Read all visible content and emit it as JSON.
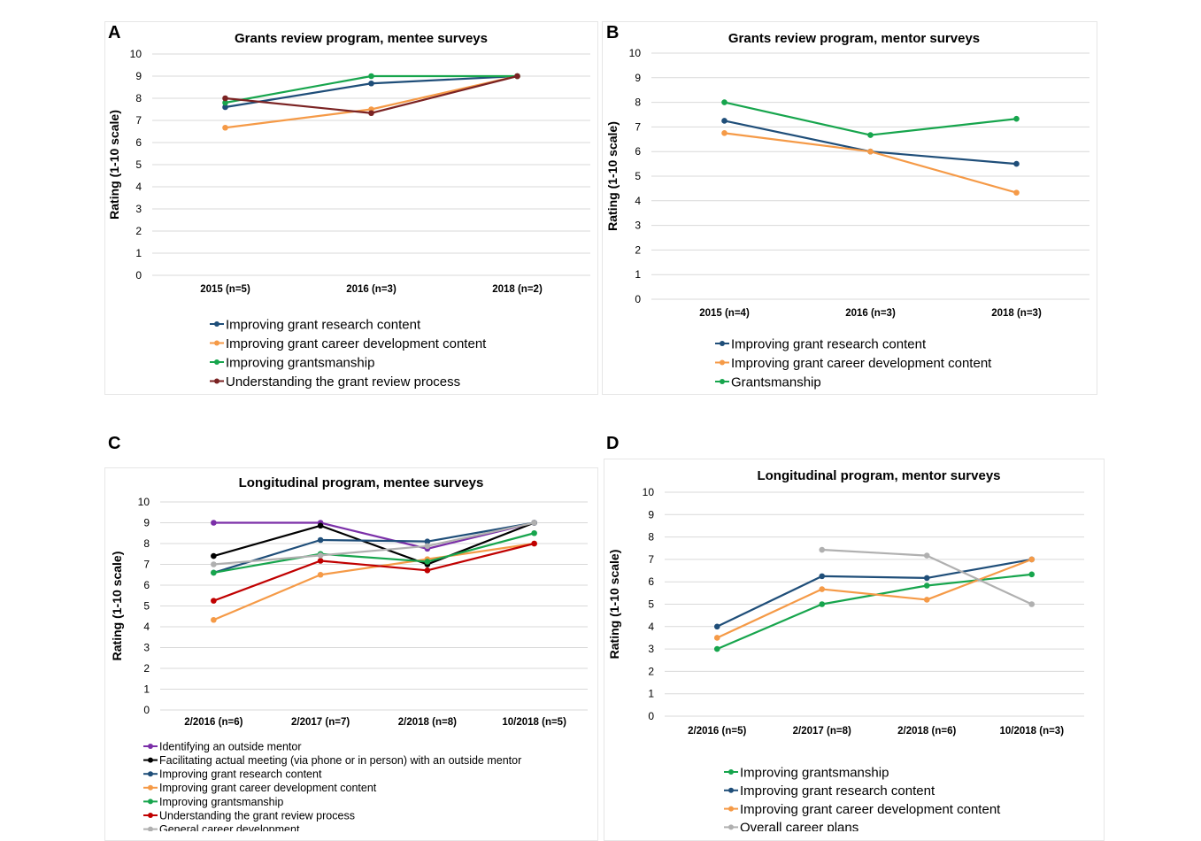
{
  "panels": [
    "A",
    "B",
    "C",
    "D"
  ],
  "chart_data": [
    {
      "type": "line",
      "title": "Grants review program, mentee surveys",
      "ylabel": "Rating (1-10 scale)",
      "ylim": [
        0,
        10
      ],
      "yticks": [
        "0",
        "1",
        "2",
        "3",
        "4",
        "5",
        "6",
        "7",
        "8",
        "9",
        "10"
      ],
      "categories": [
        "2015 (n=5)",
        "2016 (n=3)",
        "2018 (n=2)"
      ],
      "legend_position": "bottom",
      "grid": true,
      "series": [
        {
          "name": "Improving grant research content",
          "color": "#1f4e79",
          "values": [
            7.6,
            8.67,
            9
          ]
        },
        {
          "name": "Improving grant career development content",
          "color": "#f59a47",
          "values": [
            6.67,
            7.5,
            9
          ]
        },
        {
          "name": "Improving grantsmanship",
          "color": "#17a54d",
          "values": [
            7.8,
            9,
            9
          ]
        },
        {
          "name": "Understanding the grant review process",
          "color": "#7b2323",
          "values": [
            8,
            7.33,
            9
          ]
        }
      ]
    },
    {
      "type": "line",
      "title": "Grants review program, mentor surveys",
      "ylabel": "Rating (1-10 scale)",
      "ylim": [
        0,
        10
      ],
      "yticks": [
        "0",
        "1",
        "2",
        "3",
        "4",
        "5",
        "6",
        "7",
        "8",
        "9",
        "10"
      ],
      "categories": [
        "2015 (n=4)",
        "2016 (n=3)",
        "2018 (n=3)"
      ],
      "legend_position": "bottom",
      "grid": true,
      "series": [
        {
          "name": "Improving grant research content",
          "color": "#1f4e79",
          "values": [
            7.25,
            6,
            5.5
          ]
        },
        {
          "name": "Improving grant career development content",
          "color": "#f59a47",
          "values": [
            6.75,
            6,
            4.33
          ]
        },
        {
          "name": "Grantsmanship",
          "color": "#17a54d",
          "values": [
            8,
            6.67,
            7.33
          ]
        }
      ]
    },
    {
      "type": "line",
      "title": "Longitudinal program, mentee surveys",
      "ylabel": "Rating (1-10 scale)",
      "ylim": [
        0,
        10
      ],
      "yticks": [
        "0",
        "1",
        "2",
        "3",
        "4",
        "5",
        "6",
        "7",
        "8",
        "9",
        "10"
      ],
      "categories": [
        "2/2016 (n=6)",
        "2/2017 (n=7)",
        "2/2018 (n=8)",
        "10/2018 (n=5)"
      ],
      "legend_position": "bottom",
      "grid": true,
      "series": [
        {
          "name": "Identifying an outside mentor",
          "color": "#7b2fa8",
          "values": [
            9,
            9,
            7.75,
            9
          ]
        },
        {
          "name": "Facilitating actual meeting (via phone or in person) with an outside mentor",
          "color": "#000000",
          "values": [
            7.4,
            8.86,
            7,
            9
          ]
        },
        {
          "name": "Improving grant research content",
          "color": "#1f4e79",
          "values": [
            6.6,
            8.17,
            8.1,
            9
          ]
        },
        {
          "name": "Improving grant career development content",
          "color": "#f59a47",
          "values": [
            4.33,
            6.5,
            7.25,
            8
          ]
        },
        {
          "name": "Improving grantsmanship",
          "color": "#17a54d",
          "values": [
            6.6,
            7.5,
            7.13,
            8.5
          ]
        },
        {
          "name": "Understanding the grant review process",
          "color": "#c00000",
          "values": [
            5.25,
            7.17,
            6.71,
            8
          ]
        },
        {
          "name": "General career development",
          "color": "#b0b0b0",
          "values": [
            7,
            7.43,
            7.88,
            9
          ]
        }
      ]
    },
    {
      "type": "line",
      "title": "Longitudinal program, mentor surveys",
      "ylabel": "Rating (1-10 scale)",
      "ylim": [
        0,
        10
      ],
      "yticks": [
        "0",
        "1",
        "2",
        "3",
        "4",
        "5",
        "6",
        "7",
        "8",
        "9",
        "10"
      ],
      "categories": [
        "2/2016 (n=5)",
        "2/2017 (n=8)",
        "2/2018 (n=6)",
        "10/2018 (n=3)"
      ],
      "legend_position": "bottom",
      "grid": true,
      "series": [
        {
          "name": "Improving grantsmanship",
          "color": "#17a54d",
          "values": [
            3,
            5,
            5.83,
            6.33
          ]
        },
        {
          "name": "Improving grant research content",
          "color": "#1f4e79",
          "values": [
            4,
            6.25,
            6.17,
            7
          ]
        },
        {
          "name": "Improving grant career development content",
          "color": "#f59a47",
          "values": [
            3.5,
            5.67,
            5.2,
            7
          ]
        },
        {
          "name": "Overall career plans",
          "color": "#b0b0b0",
          "values": [
            null,
            7.43,
            7.17,
            5
          ]
        }
      ]
    }
  ]
}
